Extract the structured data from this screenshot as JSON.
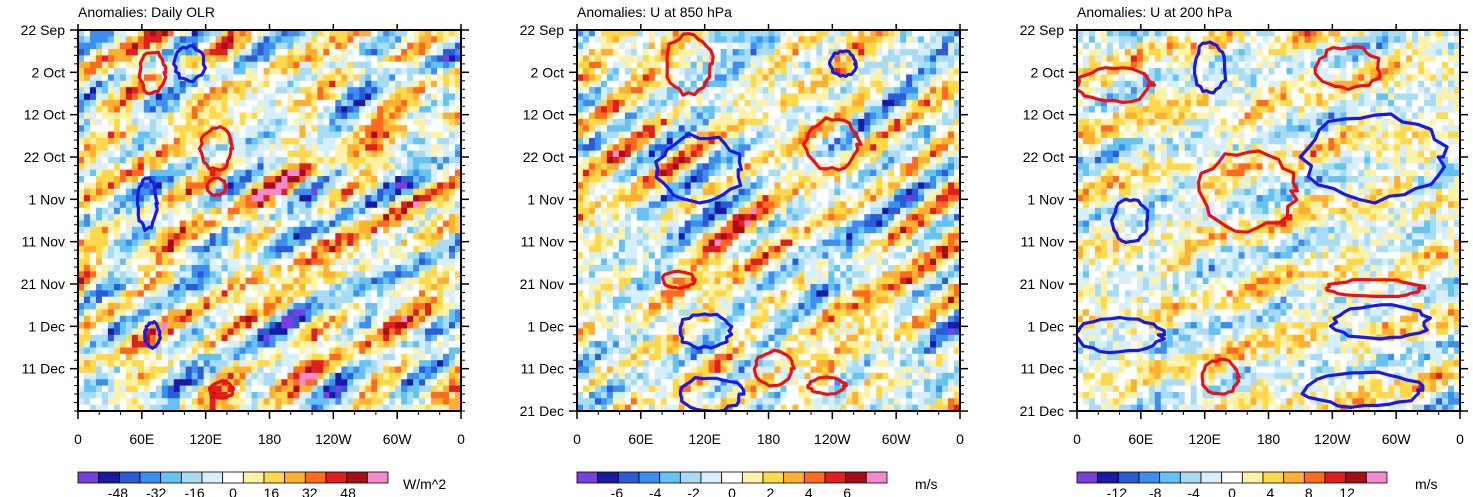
{
  "chart_data": [
    {
      "type": "heatmap",
      "title": "Anomalies: Daily OLR",
      "units": "W/m^2",
      "x_ticks": [
        "0",
        "60E",
        "120E",
        "180",
        "120W",
        "60W",
        "0"
      ],
      "x_range": [
        0,
        360
      ],
      "y_ticks": [
        "22 Sep",
        "2 Oct",
        "12 Oct",
        "22 Oct",
        "1 Nov",
        "11 Nov",
        "21 Nov",
        "1 Dec",
        "11 Dec"
      ],
      "y_range_days": [
        0,
        90
      ],
      "colorbar": {
        "levels": [
          -56,
          -48,
          -40,
          -32,
          -24,
          -16,
          -8,
          0,
          8,
          16,
          24,
          32,
          40,
          48,
          56
        ],
        "tick_labels": [
          "-48",
          "-32",
          "-16",
          "0",
          "16",
          "32",
          "48"
        ],
        "tick_values": [
          -48,
          -32,
          -16,
          0,
          16,
          32,
          48
        ]
      },
      "contours": [
        {
          "color": "red",
          "lon": 70,
          "day": 10,
          "rlon": 12,
          "rday": 5
        },
        {
          "color": "blue",
          "lon": 105,
          "day": 8,
          "rlon": 14,
          "rday": 4
        },
        {
          "color": "red",
          "lon": 130,
          "day": 28,
          "rlon": 15,
          "rday": 5
        },
        {
          "color": "blue",
          "lon": 65,
          "day": 41,
          "rlon": 9,
          "rday": 6
        },
        {
          "color": "red",
          "lon": 130,
          "day": 37,
          "rlon": 9,
          "rday": 2
        },
        {
          "color": "blue",
          "lon": 70,
          "day": 72,
          "rlon": 7,
          "rday": 3
        },
        {
          "color": "red",
          "lon": 135,
          "day": 85,
          "rlon": 11,
          "rday": 2
        }
      ]
    },
    {
      "type": "heatmap",
      "title": "Anomalies: U at 850 hPa",
      "units": "m/s",
      "x_ticks": [
        "0",
        "60E",
        "120E",
        "180",
        "120W",
        "60W",
        "0"
      ],
      "x_range": [
        0,
        360
      ],
      "y_ticks": [
        "22 Sep",
        "2 Oct",
        "12 Oct",
        "22 Oct",
        "1 Nov",
        "11 Nov",
        "21 Nov",
        "1 Dec",
        "11 Dec",
        "21 Dec"
      ],
      "y_range_days": [
        0,
        90
      ],
      "colorbar": {
        "levels": [
          -7,
          -6,
          -5,
          -4,
          -3,
          -2,
          -1,
          0,
          1,
          2,
          3,
          4,
          5,
          6,
          7
        ],
        "tick_labels": [
          "-6",
          "-4",
          "-2",
          "0",
          "2",
          "4",
          "6"
        ],
        "tick_values": [
          -6,
          -4,
          -2,
          0,
          2,
          4,
          6
        ]
      },
      "contours": [
        {
          "color": "red",
          "lon": 105,
          "day": 8,
          "rlon": 22,
          "rday": 7
        },
        {
          "color": "blue",
          "lon": 250,
          "day": 8,
          "rlon": 12,
          "rday": 3
        },
        {
          "color": "blue",
          "lon": 115,
          "day": 33,
          "rlon": 40,
          "rday": 8
        },
        {
          "color": "red",
          "lon": 240,
          "day": 27,
          "rlon": 25,
          "rday": 6
        },
        {
          "color": "blue",
          "lon": 120,
          "day": 71,
          "rlon": 25,
          "rday": 4
        },
        {
          "color": "red",
          "lon": 95,
          "day": 59,
          "rlon": 15,
          "rday": 2
        },
        {
          "color": "red",
          "lon": 185,
          "day": 80,
          "rlon": 18,
          "rday": 4
        },
        {
          "color": "blue",
          "lon": 125,
          "day": 86,
          "rlon": 30,
          "rday": 4
        },
        {
          "color": "red",
          "lon": 235,
          "day": 84,
          "rlon": 17,
          "rday": 2
        }
      ]
    },
    {
      "type": "heatmap",
      "title": "Anomalies: U at 200 hPa",
      "units": "m/s",
      "x_ticks": [
        "0",
        "60E",
        "120E",
        "180",
        "120W",
        "60W",
        "0"
      ],
      "x_range": [
        0,
        360
      ],
      "y_ticks": [
        "22 Sep",
        "2 Oct",
        "12 Oct",
        "22 Oct",
        "1 Nov",
        "11 Nov",
        "21 Nov",
        "1 Dec",
        "11 Dec",
        "21 Dec"
      ],
      "y_range_days": [
        0,
        90
      ],
      "colorbar": {
        "levels": [
          -14,
          -12,
          -10,
          -8,
          -6,
          -4,
          -2,
          0,
          2,
          4,
          6,
          8,
          10,
          12,
          14
        ],
        "tick_labels": [
          "-12",
          "-8",
          "-4",
          "0",
          "4",
          "8",
          "12"
        ],
        "tick_values": [
          -12,
          -8,
          -4,
          0,
          4,
          8,
          12
        ]
      },
      "contours": [
        {
          "color": "blue",
          "lon": 125,
          "day": 9,
          "rlon": 15,
          "rday": 6
        },
        {
          "color": "red",
          "lon": 255,
          "day": 9,
          "rlon": 30,
          "rday": 5
        },
        {
          "color": "red",
          "lon": 35,
          "day": 13,
          "rlon": 35,
          "rday": 4
        },
        {
          "color": "blue",
          "lon": 280,
          "day": 30,
          "rlon": 65,
          "rday": 10
        },
        {
          "color": "red",
          "lon": 160,
          "day": 38,
          "rlon": 45,
          "rday": 9
        },
        {
          "color": "blue",
          "lon": 50,
          "day": 45,
          "rlon": 17,
          "rday": 5
        },
        {
          "color": "red",
          "lon": 280,
          "day": 61,
          "rlon": 45,
          "rday": 2
        },
        {
          "color": "blue",
          "lon": 40,
          "day": 72,
          "rlon": 40,
          "rday": 4
        },
        {
          "color": "blue",
          "lon": 285,
          "day": 69,
          "rlon": 45,
          "rday": 4
        },
        {
          "color": "red",
          "lon": 135,
          "day": 82,
          "rlon": 17,
          "rday": 4
        },
        {
          "color": "blue",
          "lon": 270,
          "day": 85,
          "rlon": 55,
          "rday": 4
        }
      ]
    }
  ],
  "palette": [
    "#7a3fe0",
    "#1a1aa8",
    "#2b5bd6",
    "#3d8ef0",
    "#66c2f0",
    "#a8dcf5",
    "#d7eefb",
    "#ffffff",
    "#fff2a6",
    "#ffd94a",
    "#ffb030",
    "#ff6a1f",
    "#e02020",
    "#a60e14",
    "#f28ad0"
  ],
  "contour_colors": {
    "red": "#ee1111",
    "blue": "#1a1ae6"
  }
}
